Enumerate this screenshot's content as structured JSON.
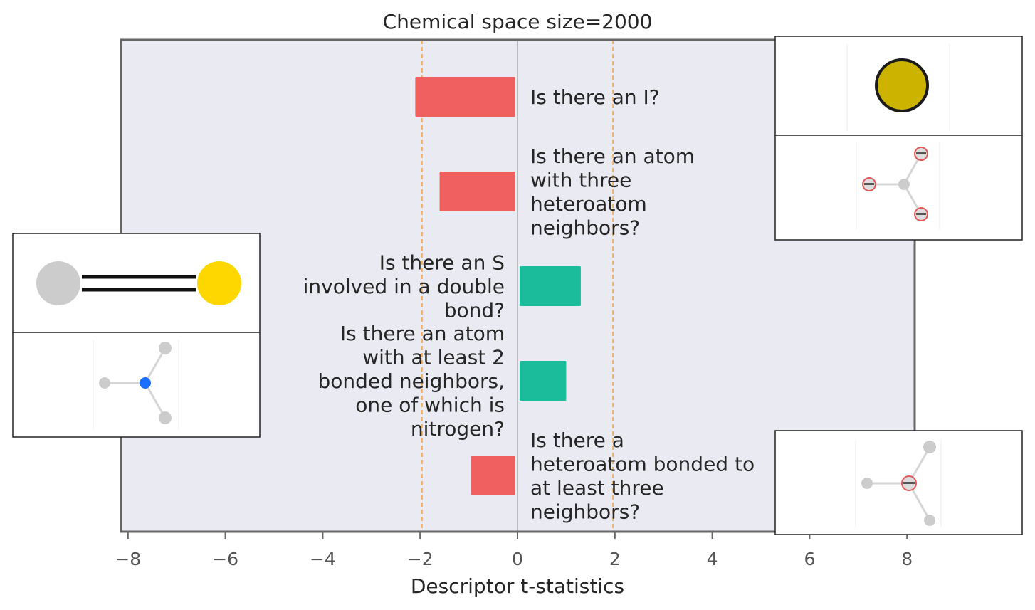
{
  "chart_data": {
    "type": "bar",
    "orientation": "horizontal",
    "title": "Chemical space size=2000",
    "xlabel": "Descriptor t-statistics",
    "ylabel": "",
    "xlim": [
      -8.2,
      8.2
    ],
    "xticks": [
      -8,
      -6,
      -4,
      -2,
      0,
      2,
      4,
      6,
      8
    ],
    "xtick_labels": [
      "−8",
      "−6",
      "−4",
      "−2",
      "0",
      "2",
      "4",
      "6",
      "8"
    ],
    "grid": false,
    "reference_lines": [
      -1.96,
      1.96
    ],
    "zero_line": 0,
    "bars": [
      {
        "label": [
          "Is there an I?"
        ],
        "value": -2.1,
        "color": "#f06060"
      },
      {
        "label": [
          "Is there an atom",
          "with three",
          "heteroatom",
          "neighbors?"
        ],
        "value": -1.6,
        "color": "#f06060"
      },
      {
        "label": [
          "Is there an S",
          "involved in a double",
          "bond?"
        ],
        "value": 1.3,
        "color": "#1abc9c"
      },
      {
        "label": [
          "Is there an atom",
          "with at least 2",
          "bonded neighbors,",
          "one of which is",
          "nitrogen?"
        ],
        "value": 1.0,
        "color": "#1abc9c"
      },
      {
        "label": [
          "Is there a",
          "heteroatom bonded to",
          "at least three",
          "neighbors?"
        ],
        "value": -0.95,
        "color": "#f06060"
      }
    ],
    "colors": {
      "plot_background": "#eaeaf2",
      "frame": "#666666",
      "reference_line": "#f5a64a",
      "zero_line": "#999999",
      "negative": "#f06060",
      "positive": "#1abc9c"
    }
  },
  "insets": [
    {
      "name": "iodine-atom-icon",
      "attached_to_bar": 0
    },
    {
      "name": "three-heteroatom-neighbors-icon",
      "attached_to_bar": 1
    },
    {
      "name": "sulfur-double-bond-icon",
      "attached_to_bar": 2
    },
    {
      "name": "nitrogen-neighbor-icon",
      "attached_to_bar": 3
    },
    {
      "name": "heteroatom-three-neighbors-icon",
      "attached_to_bar": 4
    }
  ]
}
